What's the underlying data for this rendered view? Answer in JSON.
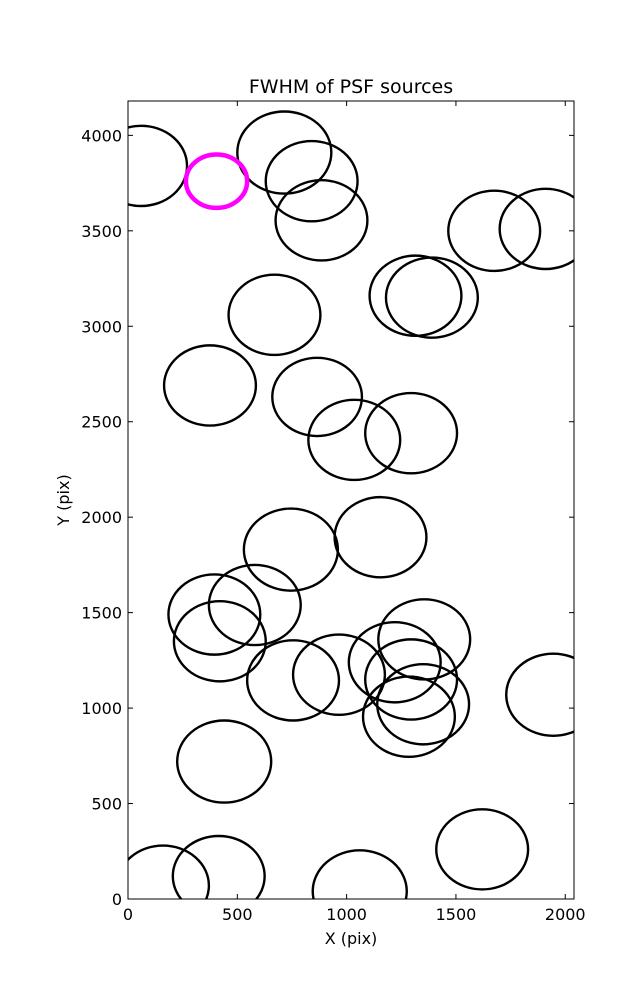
{
  "chart_data": {
    "type": "scatter",
    "title": "FWHM of PSF sources",
    "xlabel": "X (pix)",
    "ylabel": "Y (pix)",
    "xlim": [
      0,
      2040
    ],
    "ylim": [
      0,
      4180
    ],
    "xticks": [
      0,
      500,
      1000,
      1500,
      2000
    ],
    "yticks": [
      0,
      500,
      1000,
      1500,
      2000,
      2500,
      3000,
      3500,
      4000
    ],
    "grid": false,
    "legend": "none",
    "circle_color": "#000000",
    "highlight_color": "#ff00ff",
    "sources": [
      {
        "x": 60,
        "y": 3840,
        "r": 210
      },
      {
        "x": 715,
        "y": 3910,
        "r": 215
      },
      {
        "x": 840,
        "y": 3760,
        "r": 210
      },
      {
        "x": 885,
        "y": 3555,
        "r": 210
      },
      {
        "x": 1675,
        "y": 3500,
        "r": 210
      },
      {
        "x": 1910,
        "y": 3510,
        "r": 210
      },
      {
        "x": 1315,
        "y": 3160,
        "r": 210
      },
      {
        "x": 1390,
        "y": 3150,
        "r": 210
      },
      {
        "x": 670,
        "y": 3060,
        "r": 210
      },
      {
        "x": 375,
        "y": 2690,
        "r": 210
      },
      {
        "x": 865,
        "y": 2630,
        "r": 205
      },
      {
        "x": 1035,
        "y": 2405,
        "r": 210
      },
      {
        "x": 1295,
        "y": 2440,
        "r": 210
      },
      {
        "x": 745,
        "y": 1830,
        "r": 215
      },
      {
        "x": 1155,
        "y": 1895,
        "r": 210
      },
      {
        "x": 580,
        "y": 1540,
        "r": 210
      },
      {
        "x": 395,
        "y": 1490,
        "r": 210
      },
      {
        "x": 420,
        "y": 1350,
        "r": 210
      },
      {
        "x": 755,
        "y": 1145,
        "r": 210
      },
      {
        "x": 965,
        "y": 1175,
        "r": 210
      },
      {
        "x": 1220,
        "y": 1240,
        "r": 210
      },
      {
        "x": 1355,
        "y": 1360,
        "r": 210
      },
      {
        "x": 1295,
        "y": 1150,
        "r": 210
      },
      {
        "x": 1350,
        "y": 1020,
        "r": 210
      },
      {
        "x": 1285,
        "y": 955,
        "r": 210
      },
      {
        "x": 1945,
        "y": 1070,
        "r": 215
      },
      {
        "x": 440,
        "y": 720,
        "r": 215
      },
      {
        "x": 1620,
        "y": 260,
        "r": 210
      },
      {
        "x": 160,
        "y": 70,
        "r": 210
      },
      {
        "x": 415,
        "y": 120,
        "r": 210
      },
      {
        "x": 1060,
        "y": 40,
        "r": 215
      },
      {
        "x": 405,
        "y": 3760,
        "r": 140,
        "highlight": true
      }
    ]
  }
}
